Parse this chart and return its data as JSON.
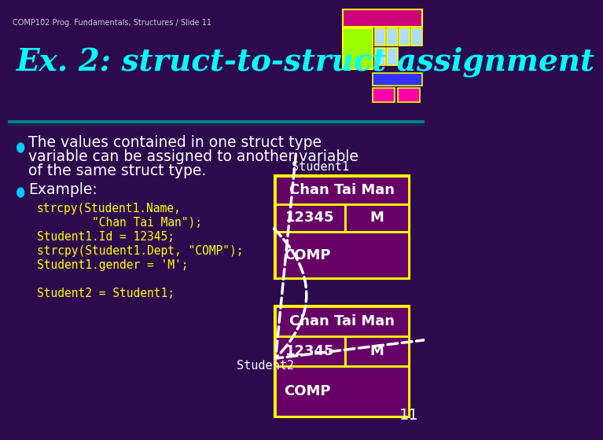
{
  "slide_number": "11",
  "header_text": "COMP102 Prog. Fundamentals, Structures / Slide 11",
  "title": "Ex. 2: struct-to-struct assignment",
  "bg_color": "#2d0a4e",
  "title_color": "#00ffff",
  "body_text_color": "#ffffff",
  "bullet_color": "#00ccff",
  "code_color": "#ffff00",
  "bullet1": "The values contained in one struct type\nvariable can be assigned to another variable\nof the same struct type.",
  "bullet2": "Example:",
  "code_block": "strcpy(Student1.Name,\n        \"Chan Tai Man\");\nStudent1.Id = 12345;\nstrcpy(Student1.Dept, \"COMP\");\nStudent1.gender = 'M';\n\nStudent2 = Student1;",
  "box_border_color": "#ffff00",
  "box_fill_color": "#800080",
  "box_text_color": "#ffffff",
  "student1_label": "Student1",
  "student2_label": "Student2",
  "name_val": "Chan Tai Man",
  "id_val": "12345",
  "gender_val": "M",
  "dept_val": "COMP",
  "divider_color": "#008080",
  "logo_colors": {
    "top_bar": "#cc0077",
    "green_large": "#99ff00",
    "blue_bar": "#3333ff",
    "light_blue_cells": "#aaddff",
    "pink_cells": "#ff00aa",
    "outline": "#ffff00"
  }
}
